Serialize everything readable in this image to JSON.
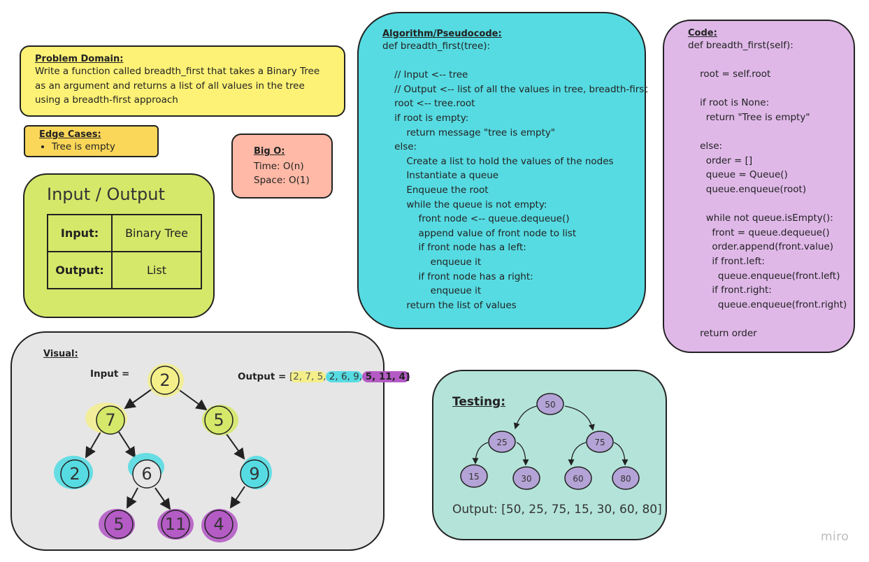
{
  "problem": {
    "heading": "Problem Domain:",
    "text": "Write a function called breadth_first that takes a Binary Tree as an argument and returns a list of all values in the tree using a breadth-first approach"
  },
  "edge_cases": {
    "heading": "Edge Cases:",
    "items": [
      "Tree is empty"
    ]
  },
  "big_o": {
    "heading": "Big O:",
    "time": "Time: O(n)",
    "space": "Space: O(1)"
  },
  "io": {
    "title": "Input / Output",
    "rows": [
      {
        "label": "Input:",
        "value": "Binary Tree"
      },
      {
        "label": "Output:",
        "value": "List"
      }
    ]
  },
  "algorithm": {
    "heading": "Algorithm/Pseudocode:",
    "lines": [
      "def breadth_first(tree):",
      "",
      "    // Input <-- tree",
      "    // Output <-- list of all the values in tree, breadth-first",
      "    root <-- tree.root",
      "    if root is empty:",
      "        return message \"tree is empty\"",
      "    else:",
      "        Create a list to hold the values of the nodes",
      "        Instantiate a queue",
      "        Enqueue the root",
      "        while the queue is not empty:",
      "            front node <-- queue.dequeue()",
      "            append value of front node to list",
      "            if front node has a left:",
      "                enqueue it",
      "            if front node has a right:",
      "                enqueue it",
      "        return the list of values"
    ]
  },
  "code": {
    "heading": "Code:",
    "lines": [
      "def breadth_first(self):",
      "",
      "    root = self.root",
      "",
      "    if root is None:",
      "      return \"Tree is empty\"",
      "",
      "    else:",
      "      order = []",
      "      queue = Queue()",
      "      queue.enqueue(root)",
      "",
      "      while not queue.isEmpty():",
      "        front = queue.dequeue()",
      "        order.append(front.value)",
      "        if front.left:",
      "          queue.enqueue(front.left)",
      "        if front.right:",
      "          queue.enqueue(front.right)",
      "",
      "    return order"
    ]
  },
  "visual": {
    "heading": "Visual:",
    "input_label": "Input =",
    "output_label": "Output =",
    "output_parts": [
      "[2, 7, 5,",
      " 2, 6, 9,",
      " 5, 11, 4]"
    ],
    "nodes": [
      "2",
      "7",
      "5",
      "2",
      "6",
      "9",
      "5",
      "11",
      "4"
    ],
    "colors": {
      "level1": "#f4ef88",
      "level2": "#d6e86a",
      "level3": "#56dbe2",
      "level4": "#b45bc5"
    }
  },
  "testing": {
    "heading": "Testing:",
    "nodes": [
      "50",
      "25",
      "75",
      "15",
      "30",
      "60",
      "80"
    ],
    "node_color": "#b3a3d6",
    "output": "Output: [50, 25, 75, 15, 30, 60, 80]"
  },
  "watermark": "miro"
}
